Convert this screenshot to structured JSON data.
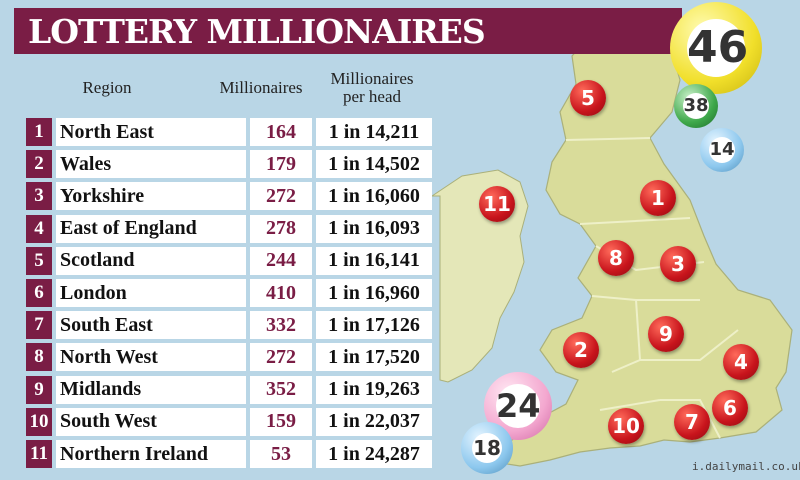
{
  "title": "LOTTERY MILLIONAIRES",
  "headers": {
    "region": "Region",
    "millionaires": "Millionaires",
    "per_head_line1": "Millionaires",
    "per_head_line2": "per head"
  },
  "rows": [
    {
      "rank": "1",
      "region": "North East",
      "millionaires": "164",
      "per_head": "1 in 14,211"
    },
    {
      "rank": "2",
      "region": "Wales",
      "millionaires": "179",
      "per_head": "1 in 14,502"
    },
    {
      "rank": "3",
      "region": "Yorkshire",
      "millionaires": "272",
      "per_head": "1 in 16,060"
    },
    {
      "rank": "4",
      "region": "East of England",
      "millionaires": "278",
      "per_head": "1 in 16,093"
    },
    {
      "rank": "5",
      "region": "Scotland",
      "millionaires": "244",
      "per_head": "1 in 16,141"
    },
    {
      "rank": "6",
      "region": "London",
      "millionaires": "410",
      "per_head": "1 in 16,960"
    },
    {
      "rank": "7",
      "region": "South East",
      "millionaires": "332",
      "per_head": "1 in 17,126"
    },
    {
      "rank": "8",
      "region": "North West",
      "millionaires": "272",
      "per_head": "1 in 17,520"
    },
    {
      "rank": "9",
      "region": "Midlands",
      "millionaires": "352",
      "per_head": "1 in 19,263"
    },
    {
      "rank": "10",
      "region": "South West",
      "millionaires": "159",
      "per_head": "1 in 22,037"
    },
    {
      "rank": "11",
      "region": "Northern Ireland",
      "millionaires": "53",
      "per_head": "1 in 24,287"
    }
  ],
  "map_markers": [
    "5",
    "11",
    "1",
    "8",
    "3",
    "9",
    "2",
    "4",
    "10",
    "7",
    "6"
  ],
  "lottery_balls": [
    "46",
    "38",
    "14",
    "24",
    "18"
  ],
  "credit": "i.dailymail.co.uk",
  "colors": {
    "banner": "#7a1d45",
    "sea": "#b9d6e6",
    "land": "#d9dc9a",
    "ireland": "#e4e7b8",
    "marker": "#c8141c"
  }
}
